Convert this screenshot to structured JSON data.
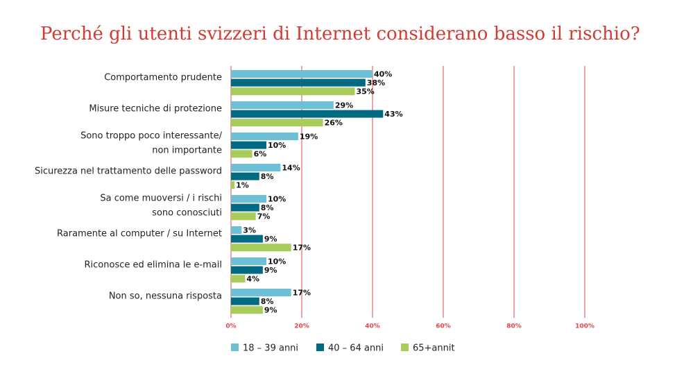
{
  "chart_data": {
    "type": "bar",
    "orientation": "horizontal",
    "title": "Perché gli utenti svizzeri di Internet considerano basso il rischio?",
    "categories": [
      [
        "Comportamento prudente"
      ],
      [
        "Misure tecniche di protezione"
      ],
      [
        "Sono troppo poco interessante/",
        "non importante"
      ],
      [
        "Sicurezza nel trattamento delle password"
      ],
      [
        "Sa come muoversi / i rischi",
        "sono conosciuti"
      ],
      [
        "Raramente al computer / su Internet"
      ],
      [
        "Riconosce ed elimina le e-mail"
      ],
      [
        "Non so, nessuna risposta"
      ]
    ],
    "series": [
      {
        "name": "18 – 39 anni",
        "color": "#6dc0d5",
        "values": [
          40,
          29,
          19,
          14,
          10,
          3,
          10,
          17
        ],
        "value_labels": [
          "40%",
          "29%",
          "19%",
          "14%",
          "10%",
          "3%",
          "10%",
          "17%"
        ]
      },
      {
        "name": "40 – 64 anni",
        "color": "#006b82",
        "values": [
          38,
          43,
          10,
          8,
          8,
          9,
          9,
          8
        ],
        "value_labels": [
          "38%",
          "43%",
          "10%",
          "8%",
          "8%",
          "9%",
          "9%",
          "8%"
        ]
      },
      {
        "name": "65+annit",
        "color": "#a8cc5c",
        "values": [
          35,
          26,
          6,
          1,
          7,
          17,
          4,
          9
        ],
        "value_labels": [
          "35%",
          "26%",
          "6%",
          "1%",
          "7%",
          "17%",
          "4%",
          "9%"
        ]
      }
    ],
    "xlim": [
      0,
      100
    ],
    "xticks": [
      {
        "value": 0,
        "label": "0%"
      },
      {
        "value": 20,
        "label": "20%"
      },
      {
        "value": 40,
        "label": "40%"
      },
      {
        "value": 60,
        "label": "60%"
      },
      {
        "value": 80,
        "label": "80%"
      },
      {
        "value": 100,
        "label": "100%"
      }
    ],
    "grid": true,
    "grid_color": "#e0474c",
    "legend": "bottom"
  }
}
